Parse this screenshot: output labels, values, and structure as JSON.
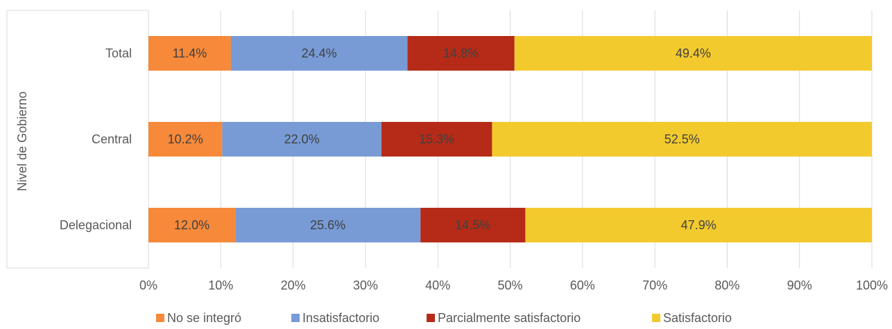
{
  "chart_data": {
    "type": "bar",
    "orientation": "horizontal",
    "stacked": "percent",
    "categories": [
      "Total",
      "Central",
      "Delegacional"
    ],
    "ylabel": "Nivel de Gobierno",
    "xlabel": "",
    "xlim": [
      0,
      100
    ],
    "x_ticks": [
      "0%",
      "10%",
      "20%",
      "30%",
      "40%",
      "50%",
      "60%",
      "70%",
      "80%",
      "90%",
      "100%"
    ],
    "grid": "vertical",
    "legend_position": "bottom",
    "series": [
      {
        "name": "No se integró",
        "color": "#F6893A",
        "values": [
          11.4,
          10.2,
          12.0
        ],
        "labels": [
          "11.4%",
          "10.2%",
          "12.0%"
        ]
      },
      {
        "name": "Insatisfactorio",
        "color": "#789BD6",
        "values": [
          24.4,
          22.0,
          25.6
        ],
        "labels": [
          "24.4%",
          "22.0%",
          "25.6%"
        ]
      },
      {
        "name": "Parcialmente satisfactorio",
        "color": "#B52B17",
        "values": [
          14.8,
          15.3,
          14.5
        ],
        "labels": [
          "14.8%",
          "15.3%",
          "14.5%"
        ]
      },
      {
        "name": "Satisfactorio",
        "color": "#F3CA2E",
        "values": [
          49.4,
          52.5,
          47.9
        ],
        "labels": [
          "49.4%",
          "52.5%",
          "47.9%"
        ]
      }
    ]
  }
}
